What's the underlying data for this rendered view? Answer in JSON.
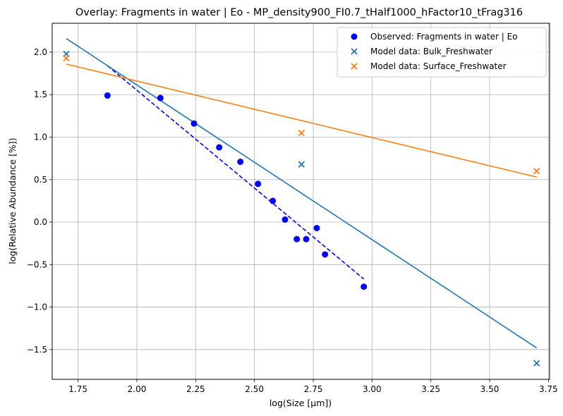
{
  "chart_data": {
    "type": "scatter",
    "title": "Overlay: Fragments in water | Eo - MP_density900_FI0.7_tHalf1000_hFactor10_tFrag316",
    "xlabel": "log(Size [μm])",
    "ylabel": "log(Relative Abundance [%])",
    "xlim": [
      1.64,
      3.755
    ],
    "ylim": [
      -1.85,
      2.34
    ],
    "xticks": [
      1.75,
      2.0,
      2.25,
      2.5,
      2.75,
      3.0,
      3.25,
      3.5,
      3.75
    ],
    "xtick_labels": [
      "1.75",
      "2.00",
      "2.25",
      "2.50",
      "2.75",
      "3.00",
      "3.25",
      "3.50",
      "3.75"
    ],
    "yticks": [
      -1.5,
      -1.0,
      -0.5,
      0.0,
      0.5,
      1.0,
      1.5,
      2.0
    ],
    "ytick_labels": [
      "−1.5",
      "−1.0",
      "−0.5",
      "0.0",
      "0.5",
      "1.0",
      "1.5",
      "2.0"
    ],
    "grid": true,
    "legend_position": "top-right",
    "series": [
      {
        "name": "Observed: Fragments in water | Eo",
        "kind": "scatter",
        "marker": "circle",
        "color": "#0000ff",
        "x": [
          1.875,
          2.1,
          2.243,
          2.35,
          2.44,
          2.515,
          2.578,
          2.63,
          2.68,
          2.72,
          2.765,
          2.8,
          2.965
        ],
        "y": [
          1.49,
          1.46,
          1.16,
          0.88,
          0.71,
          0.45,
          0.25,
          0.03,
          -0.2,
          -0.2,
          -0.07,
          -0.38,
          -0.76
        ]
      },
      {
        "name": "Model data: Bulk_Freshwater",
        "kind": "scatter",
        "marker": "x",
        "color": "#1f77b4",
        "x": [
          1.7,
          2.7,
          3.7
        ],
        "y": [
          1.98,
          0.68,
          -1.66
        ]
      },
      {
        "name": "Model data: Surface_Freshwater",
        "kind": "scatter",
        "marker": "x",
        "color": "#ff7f0e",
        "x": [
          1.7,
          2.7,
          3.7
        ],
        "y": [
          1.93,
          1.05,
          0.6
        ]
      }
    ],
    "fit_lines": [
      {
        "for_series": "Observed: Fragments in water | Eo",
        "style": "dashed",
        "color": "#0000ff",
        "x": [
          1.875,
          2.965
        ],
        "y": [
          1.84,
          -0.67
        ]
      },
      {
        "for_series": "Model data: Bulk_Freshwater",
        "style": "solid",
        "color": "#1f77b4",
        "x": [
          1.7,
          3.7
        ],
        "y": [
          2.16,
          -1.48
        ]
      },
      {
        "for_series": "Model data: Surface_Freshwater",
        "style": "solid",
        "color": "#ff7f0e",
        "x": [
          1.7,
          3.7
        ],
        "y": [
          1.86,
          0.53
        ]
      }
    ]
  }
}
